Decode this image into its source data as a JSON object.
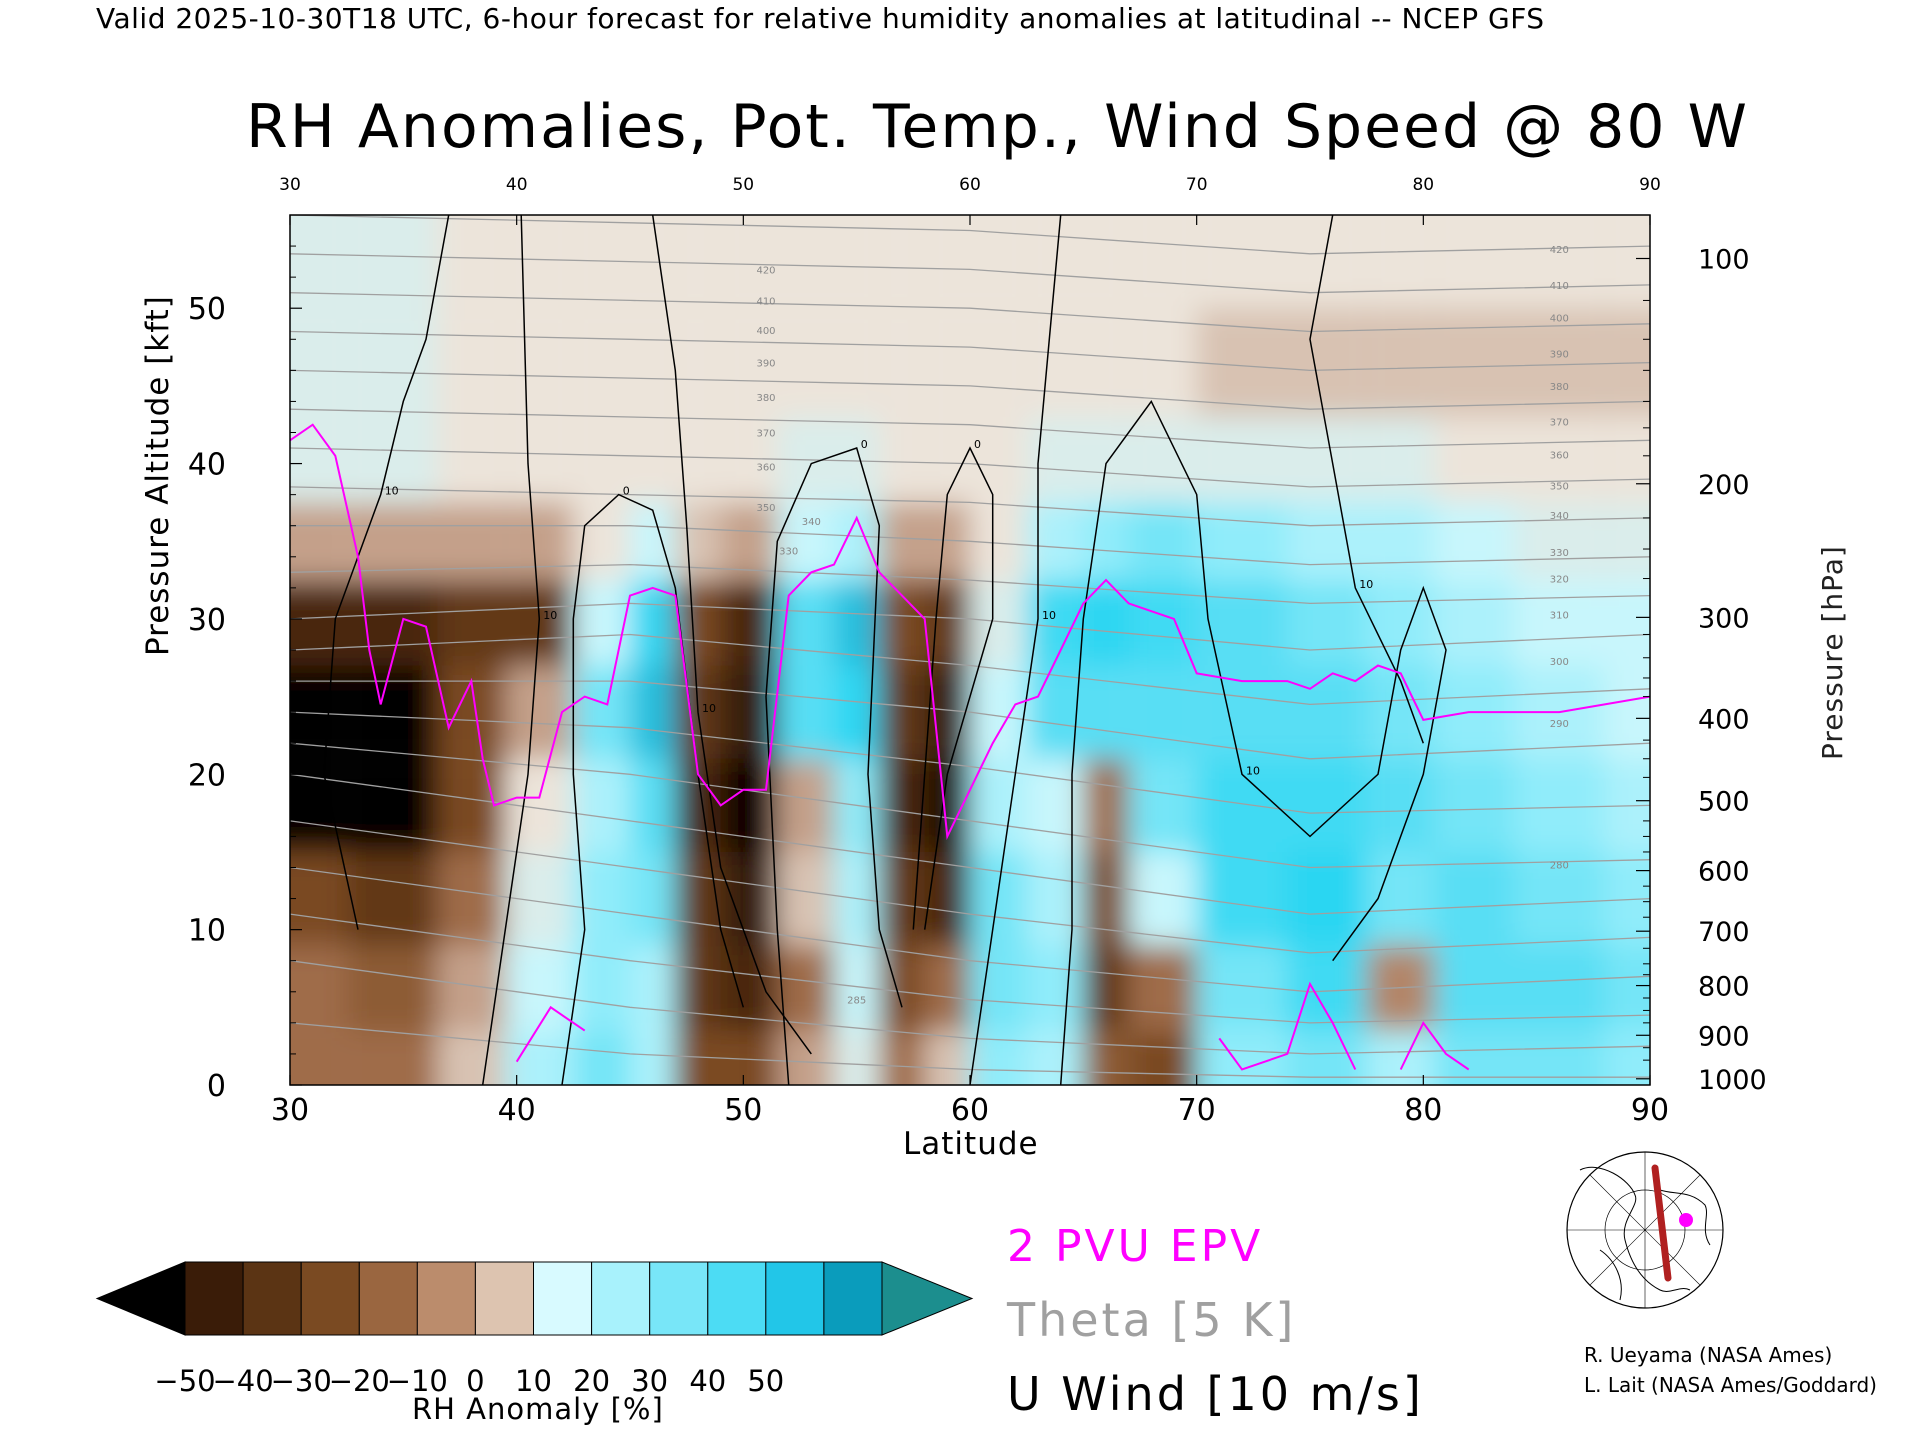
{
  "header": "Valid 2025-10-30T18 UTC, 6-hour forecast for relative humidity anomalies at latitudinal -- NCEP GFS",
  "title": "RH Anomalies, Pot. Temp., Wind Speed @ 80 W",
  "colors": {
    "dry_extreme": "#000000",
    "dry": "#7a4a22",
    "neutral": "#ece4da",
    "moist": "#2ad6f2",
    "moist_extreme": "#1c8e8e",
    "epv_line": "#ff00ff",
    "theta_line": "#a0a0a0",
    "wind_line": "#000000"
  },
  "chart_data": {
    "type": "heatmap",
    "xlabel": "Latitude",
    "ylabel": "Pressure Altitude [kft]",
    "ylabel_right": "Pressure [hPa]",
    "xlim": [
      30,
      90
    ],
    "ylim": [
      0,
      56
    ],
    "x_ticks": [
      "30",
      "40",
      "50",
      "60",
      "70",
      "80",
      "90"
    ],
    "y_ticks_left": [
      "0",
      "10",
      "20",
      "30",
      "40",
      "50"
    ],
    "y_ticks_right": [
      {
        "label": "100",
        "kft": 53.2
      },
      {
        "label": "200",
        "kft": 38.7
      },
      {
        "label": "300",
        "kft": 30.1
      },
      {
        "label": "400",
        "kft": 23.6
      },
      {
        "label": "500",
        "kft": 18.3
      },
      {
        "label": "600",
        "kft": 13.8
      },
      {
        "label": "700",
        "kft": 9.9
      },
      {
        "label": "800",
        "kft": 6.4
      },
      {
        "label": "900",
        "kft": 3.2
      },
      {
        "label": "1000",
        "kft": 0.4
      }
    ],
    "rh_anomaly_columns": [
      {
        "lat": 30,
        "values": [
          -20,
          -20,
          -30,
          -60,
          -60,
          -40,
          -10,
          5,
          5,
          5
        ]
      },
      {
        "lat": 35,
        "values": [
          -20,
          -25,
          -35,
          -60,
          -60,
          -40,
          -10,
          5,
          5,
          5
        ]
      },
      {
        "lat": 38,
        "values": [
          -5,
          -10,
          -20,
          -30,
          -30,
          -35,
          -10,
          0,
          0,
          0
        ]
      },
      {
        "lat": 41,
        "values": [
          15,
          10,
          5,
          0,
          -10,
          -35,
          -10,
          0,
          0,
          0
        ]
      },
      {
        "lat": 44,
        "values": [
          25,
          20,
          20,
          15,
          25,
          10,
          0,
          0,
          0,
          0
        ]
      },
      {
        "lat": 46,
        "values": [
          15,
          15,
          25,
          30,
          45,
          40,
          10,
          0,
          0,
          0
        ]
      },
      {
        "lat": 48,
        "values": [
          -30,
          -35,
          -35,
          -40,
          -35,
          -30,
          -5,
          0,
          0,
          0
        ]
      },
      {
        "lat": 50,
        "values": [
          -30,
          -40,
          -45,
          -55,
          -45,
          -40,
          -10,
          0,
          0,
          0
        ]
      },
      {
        "lat": 53,
        "values": [
          -10,
          -20,
          -5,
          -10,
          30,
          30,
          10,
          5,
          0,
          0
        ]
      },
      {
        "lat": 55,
        "values": [
          5,
          10,
          15,
          20,
          40,
          45,
          15,
          5,
          0,
          0
        ]
      },
      {
        "lat": 57,
        "values": [
          -20,
          -30,
          -35,
          -40,
          -35,
          -30,
          -10,
          0,
          0,
          0
        ]
      },
      {
        "lat": 59,
        "values": [
          -5,
          -20,
          -40,
          -50,
          -45,
          -35,
          -10,
          0,
          0,
          0
        ]
      },
      {
        "lat": 61,
        "values": [
          20,
          25,
          25,
          15,
          10,
          5,
          0,
          0,
          0,
          0
        ]
      },
      {
        "lat": 64,
        "values": [
          15,
          20,
          15,
          10,
          30,
          35,
          15,
          5,
          0,
          0
        ]
      },
      {
        "lat": 66,
        "values": [
          -25,
          -35,
          -30,
          -20,
          30,
          40,
          20,
          5,
          0,
          0
        ]
      },
      {
        "lat": 68,
        "values": [
          -30,
          -20,
          10,
          25,
          30,
          35,
          25,
          5,
          0,
          0
        ]
      },
      {
        "lat": 72,
        "values": [
          20,
          25,
          35,
          35,
          30,
          30,
          20,
          5,
          -5,
          0
        ]
      },
      {
        "lat": 76,
        "values": [
          25,
          35,
          40,
          35,
          30,
          25,
          15,
          5,
          -5,
          0
        ]
      },
      {
        "lat": 79,
        "values": [
          15,
          -15,
          25,
          30,
          25,
          20,
          15,
          5,
          -5,
          0
        ]
      },
      {
        "lat": 82,
        "values": [
          25,
          30,
          30,
          25,
          20,
          15,
          10,
          0,
          -5,
          0
        ]
      },
      {
        "lat": 86,
        "values": [
          25,
          30,
          25,
          20,
          15,
          10,
          5,
          0,
          -5,
          0
        ]
      },
      {
        "lat": 90,
        "values": [
          20,
          25,
          20,
          15,
          10,
          10,
          5,
          0,
          -5,
          0
        ]
      }
    ],
    "rh_anomaly_levels_kft": [
      1,
      6,
      12,
      18,
      24,
      30,
      35,
      40,
      46,
      54
    ],
    "epv_2pvu_kft": [
      [
        30,
        41.5
      ],
      [
        31,
        42.5
      ],
      [
        32,
        40.5
      ],
      [
        33,
        34
      ],
      [
        33.5,
        28
      ],
      [
        34,
        24.5
      ],
      [
        35,
        30
      ],
      [
        36,
        29.5
      ],
      [
        37,
        23
      ],
      [
        38,
        26
      ],
      [
        38.5,
        21
      ],
      [
        39,
        18
      ],
      [
        40,
        18.5
      ],
      [
        41,
        18.5
      ],
      [
        42,
        24
      ],
      [
        43,
        25
      ],
      [
        44,
        24.5
      ],
      [
        45,
        31.5
      ],
      [
        46,
        32
      ],
      [
        47,
        31.5
      ],
      [
        48,
        20
      ],
      [
        49,
        18
      ],
      [
        50,
        19
      ],
      [
        51,
        19
      ],
      [
        52,
        31.5
      ],
      [
        53,
        33
      ],
      [
        54,
        33.5
      ],
      [
        55,
        36.5
      ],
      [
        56,
        33
      ],
      [
        57,
        31.5
      ],
      [
        58,
        30
      ],
      [
        59,
        16
      ],
      [
        60,
        19
      ],
      [
        61,
        22
      ],
      [
        62,
        24.5
      ],
      [
        63,
        25
      ],
      [
        64,
        28
      ],
      [
        65,
        31
      ],
      [
        66,
        32.5
      ],
      [
        67,
        31
      ],
      [
        68,
        30.5
      ],
      [
        69,
        30
      ],
      [
        70,
        26.5
      ],
      [
        72,
        26
      ],
      [
        74,
        26
      ],
      [
        75,
        25.5
      ],
      [
        76,
        26.5
      ],
      [
        77,
        26
      ],
      [
        78,
        27
      ],
      [
        79,
        26.5
      ],
      [
        80,
        23.5
      ],
      [
        82,
        24
      ],
      [
        84,
        24
      ],
      [
        86,
        24
      ],
      [
        88,
        24.5
      ],
      [
        90,
        25
      ]
    ],
    "epv_2pvu_low_kft": [
      [
        40,
        1.5
      ],
      [
        41.5,
        5
      ],
      [
        42,
        4.5
      ],
      [
        43,
        3.5
      ],
      [
        71,
        3
      ],
      [
        72,
        1
      ],
      [
        74,
        2
      ],
      [
        75,
        6.5
      ],
      [
        76,
        4
      ],
      [
        77,
        1
      ],
      [
        79,
        1
      ],
      [
        80,
        4
      ],
      [
        81,
        2
      ],
      [
        82,
        1
      ]
    ],
    "theta_contour_labels": [
      {
        "label": "420",
        "lat": 86,
        "kft": 53.8
      },
      {
        "label": "410",
        "lat": 86,
        "kft": 51.5
      },
      {
        "label": "400",
        "lat": 86,
        "kft": 49.4
      },
      {
        "label": "390",
        "lat": 86,
        "kft": 47.1
      },
      {
        "label": "380",
        "lat": 86,
        "kft": 45
      },
      {
        "label": "370",
        "lat": 86,
        "kft": 42.7
      },
      {
        "label": "360",
        "lat": 86,
        "kft": 40.6
      },
      {
        "label": "350",
        "lat": 86,
        "kft": 38.6
      },
      {
        "label": "340",
        "lat": 86,
        "kft": 36.7
      },
      {
        "label": "330",
        "lat": 86,
        "kft": 34.3
      },
      {
        "label": "320",
        "lat": 86,
        "kft": 32.6
      },
      {
        "label": "310",
        "lat": 86,
        "kft": 30.3
      },
      {
        "label": "300",
        "lat": 86,
        "kft": 27.3
      },
      {
        "label": "290",
        "lat": 86,
        "kft": 23.3
      },
      {
        "label": "280",
        "lat": 86,
        "kft": 14.2
      },
      {
        "label": "420",
        "lat": 51,
        "kft": 52.5
      },
      {
        "label": "410",
        "lat": 51,
        "kft": 50.5
      },
      {
        "label": "400",
        "lat": 51,
        "kft": 48.6
      },
      {
        "label": "390",
        "lat": 51,
        "kft": 46.5
      },
      {
        "label": "380",
        "lat": 51,
        "kft": 44.3
      },
      {
        "label": "370",
        "lat": 51,
        "kft": 42
      },
      {
        "label": "360",
        "lat": 51,
        "kft": 39.8
      },
      {
        "label": "350",
        "lat": 51,
        "kft": 37.2
      },
      {
        "label": "340",
        "lat": 53,
        "kft": 36.3
      },
      {
        "label": "330",
        "lat": 52,
        "kft": 34.4
      },
      {
        "label": "285",
        "lat": 55,
        "kft": 5.5
      }
    ],
    "theta_base_kft": [
      {
        "lat": 30,
        "levels": [
          4,
          8,
          11,
          14,
          17,
          20,
          22,
          24,
          26,
          28,
          30,
          33,
          36,
          38.5,
          41,
          43.5,
          46,
          48.5,
          51,
          53.5,
          56
        ]
      },
      {
        "lat": 45,
        "levels": [
          2,
          5,
          8,
          11,
          14,
          17,
          20,
          23,
          26,
          29,
          31,
          33.5,
          36,
          38,
          40.5,
          43,
          45.5,
          48,
          50.5,
          53,
          55.5
        ]
      },
      {
        "lat": 60,
        "levels": [
          1,
          3,
          5.5,
          8,
          11,
          14,
          17,
          20.5,
          24,
          27,
          30,
          32.5,
          35,
          37.5,
          40,
          42.5,
          45,
          47.5,
          50,
          52.5,
          55
        ]
      },
      {
        "lat": 75,
        "levels": [
          0.5,
          2,
          4,
          6,
          8.5,
          11,
          14,
          17.5,
          21,
          24.5,
          28,
          31,
          33.5,
          36,
          38.5,
          41,
          43.5,
          46,
          48.5,
          51,
          53.5
        ]
      },
      {
        "lat": 90,
        "levels": [
          0.5,
          2.5,
          4.5,
          7,
          9.5,
          12,
          14.5,
          18,
          22,
          25.5,
          29,
          31.5,
          34,
          36.5,
          39,
          41.5,
          44,
          46.5,
          49,
          51.5,
          54
        ]
      }
    ],
    "u_wind_contours_kft": [
      {
        "label": "10",
        "points": [
          [
            33,
            10
          ],
          [
            31.5,
            20
          ],
          [
            32,
            30
          ],
          [
            34,
            38
          ],
          [
            35,
            44
          ],
          [
            36,
            48
          ],
          [
            37,
            56
          ]
        ]
      },
      {
        "label": "10",
        "points": [
          [
            38.5,
            0
          ],
          [
            39.5,
            10
          ],
          [
            40.5,
            20
          ],
          [
            41,
            30
          ],
          [
            40.5,
            40
          ],
          [
            40.2,
            56
          ]
        ]
      },
      {
        "label": "0",
        "points": [
          [
            42,
            0
          ],
          [
            43,
            10
          ],
          [
            42.5,
            20
          ],
          [
            42.5,
            30
          ],
          [
            43,
            36
          ],
          [
            44.5,
            38
          ],
          [
            46,
            37
          ],
          [
            47,
            32
          ],
          [
            48,
            20
          ],
          [
            49,
            10
          ],
          [
            50,
            5
          ]
        ]
      },
      {
        "label": "10",
        "points": [
          [
            46,
            56
          ],
          [
            47,
            46
          ],
          [
            47.5,
            36
          ],
          [
            48,
            24
          ],
          [
            49,
            14
          ],
          [
            51,
            6
          ],
          [
            53,
            2
          ]
        ]
      },
      {
        "label": "0",
        "points": [
          [
            52,
            0
          ],
          [
            51.5,
            10
          ],
          [
            51,
            25
          ],
          [
            51.5,
            35
          ],
          [
            53,
            40
          ],
          [
            55,
            41
          ],
          [
            56,
            36
          ],
          [
            55.5,
            20
          ],
          [
            56,
            10
          ],
          [
            57,
            5
          ]
        ]
      },
      {
        "label": "0",
        "points": [
          [
            57.5,
            10
          ],
          [
            58,
            20
          ],
          [
            58.5,
            30
          ],
          [
            59,
            38
          ],
          [
            60,
            41
          ],
          [
            61,
            38
          ],
          [
            61,
            30
          ],
          [
            59,
            20
          ],
          [
            58,
            10
          ]
        ]
      },
      {
        "label": "10",
        "points": [
          [
            60,
            0
          ],
          [
            61,
            10
          ],
          [
            62,
            20
          ],
          [
            63,
            30
          ],
          [
            63,
            40
          ],
          [
            63.5,
            48
          ],
          [
            64,
            56
          ]
        ]
      },
      {
        "label": "10",
        "points": [
          [
            64,
            0
          ],
          [
            64.5,
            10
          ],
          [
            64.5,
            20
          ],
          [
            65,
            30
          ],
          [
            66,
            40
          ],
          [
            68,
            44
          ],
          [
            70,
            38
          ],
          [
            70.5,
            30
          ],
          [
            72,
            20
          ],
          [
            75,
            16
          ],
          [
            78,
            20
          ],
          [
            79,
            28
          ],
          [
            80,
            32
          ],
          [
            81,
            28
          ],
          [
            80,
            20
          ],
          [
            78,
            12
          ],
          [
            76,
            8
          ]
        ]
      },
      {
        "label": "10",
        "points": [
          [
            76,
            56
          ],
          [
            75,
            48
          ],
          [
            76,
            40
          ],
          [
            77,
            32
          ],
          [
            79,
            26
          ],
          [
            80,
            22
          ]
        ]
      }
    ]
  },
  "axes": {
    "top_ticks": [
      "30",
      "40",
      "50",
      "60",
      "70",
      "80",
      "90"
    ],
    "bottom_ticks": [
      "30",
      "40",
      "50",
      "60",
      "70",
      "80",
      "90"
    ]
  },
  "colorbar": {
    "title": "RH Anomaly [%]",
    "tick_labels": [
      "−50",
      "−40",
      "−30",
      "−20",
      "−10",
      "0",
      "10",
      "20",
      "30",
      "40",
      "50"
    ],
    "colors": [
      "#3a1c08",
      "#5b3414",
      "#7a4a22",
      "#9a6640",
      "#bb8c6c",
      "#ddc4b0",
      "#d8faff",
      "#a8f2fc",
      "#78e6f8",
      "#4cdcf4",
      "#22c6e8",
      "#0a9cbc"
    ],
    "left_cap_color": "#000000",
    "right_cap_color": "#1c8e8e"
  },
  "legend": {
    "epv": "2 PVU EPV",
    "theta": "Theta [5 K]",
    "wind": "U Wind [10 m/s]"
  },
  "credits": [
    "R. Ueyama (NASA Ames)",
    "L. Lait (NASA Ames/Goddard)"
  ],
  "inset_map": {
    "section_color": "#b02020",
    "marker_color": "#ff00ff"
  }
}
